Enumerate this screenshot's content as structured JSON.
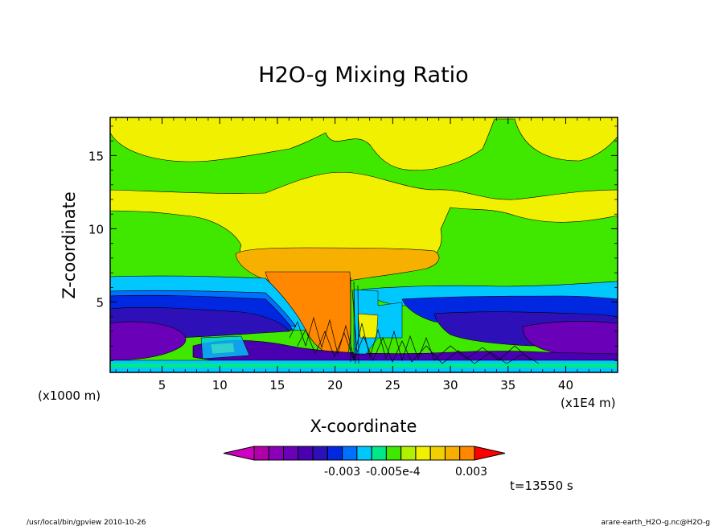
{
  "chart_data": {
    "type": "heatmap",
    "title": "H2O-g Mixing Ratio",
    "xlabel": "X-coordinate",
    "ylabel": "Z-coordinate",
    "x_unit_left": "(x1000 m)",
    "x_unit_right": "(x1E4 m)",
    "x_ticks": [
      5,
      10,
      15,
      20,
      25,
      30,
      35,
      40
    ],
    "y_ticks": [
      5,
      10,
      15
    ],
    "xlim": [
      0.5,
      44.5
    ],
    "ylim": [
      0.2,
      17.6
    ],
    "colorbar": {
      "colors": [
        "#d000c0",
        "#b000a8",
        "#8a00b8",
        "#6a00b8",
        "#4a00b0",
        "#2e10b8",
        "#0028e0",
        "#0070ff",
        "#00c8ff",
        "#00e888",
        "#40e800",
        "#b0f000",
        "#f0f000",
        "#f0d000",
        "#f8b000",
        "#ff8800",
        "#ff0000"
      ],
      "tick_labels": [
        "-0.003",
        "-0.005e-4",
        "0.003"
      ]
    },
    "annotation_time": "t=13550 s",
    "footer_left": "/usr/local/bin/gpview  2010-10-26",
    "footer_right": "arare-earth_H2O-g.nc@H2O-g"
  }
}
